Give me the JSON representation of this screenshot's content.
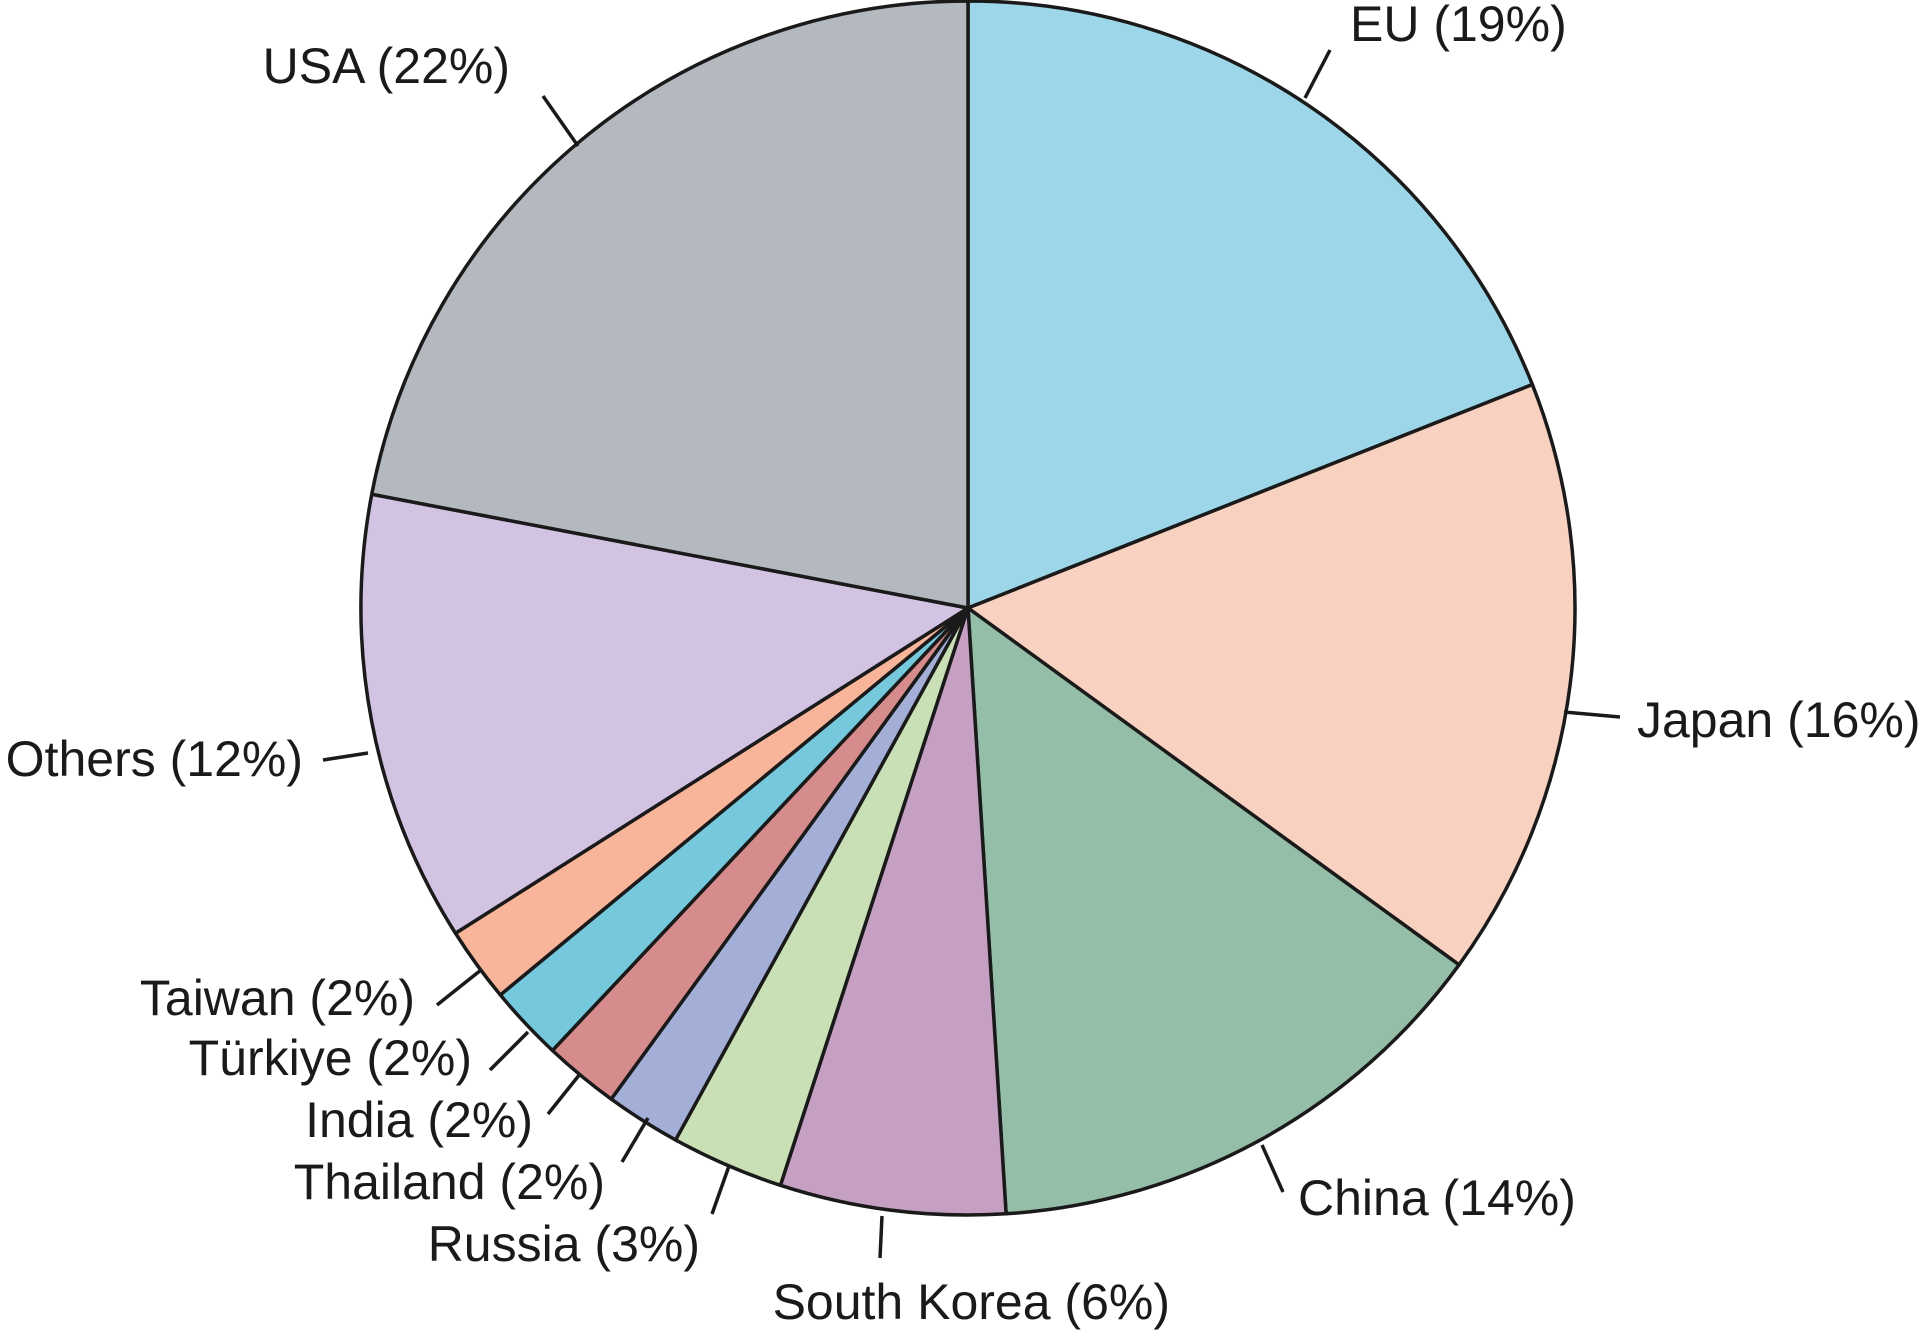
{
  "chart_data": {
    "type": "pie",
    "slices": [
      {
        "label": "EU (19%)",
        "value": 19,
        "color": "#9dd6e8"
      },
      {
        "label": "Japan (16%)",
        "value": 16,
        "color": "#f9d1c0"
      },
      {
        "label": "China (14%)",
        "value": 14,
        "color": "#94bea8"
      },
      {
        "label": "South Korea (6%)",
        "value": 6,
        "color": "#c6a0c2"
      },
      {
        "label": "Russia (3%)",
        "value": 3,
        "color": "#c9dfb5"
      },
      {
        "label": "Thailand (2%)",
        "value": 2,
        "color": "#a3afd6"
      },
      {
        "label": "India (2%)",
        "value": 2,
        "color": "#d68c8c"
      },
      {
        "label": "Türkiye (2%)",
        "value": 2,
        "color": "#76c9dd"
      },
      {
        "label": "Taiwan (2%)",
        "value": 2,
        "color": "#f8b59a"
      },
      {
        "label": "Others (12%)",
        "value": 12,
        "color": "#d3c3e3"
      },
      {
        "label": "USA (22%)",
        "value": 22,
        "color": "#b3b9bf"
      }
    ]
  }
}
